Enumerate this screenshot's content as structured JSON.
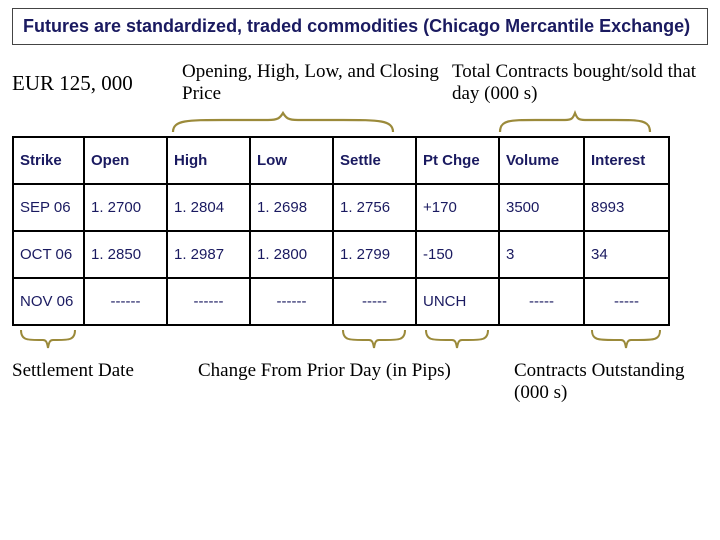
{
  "title": "Futures are standardized, traded commodities (Chicago Mercantile Exchange)",
  "annotations": {
    "contract_size": "EUR 125, 000",
    "ohlc": "Opening, High, Low, and Closing Price",
    "vol_oi": "Total Contracts bought/sold that day (000 s)",
    "settlement_date": "Settlement Date",
    "change_from_prior": "Change From Prior Day (in Pips)",
    "contracts_outstanding": "Contracts Outstanding (000 s)"
  },
  "table": {
    "columns": [
      "Strike",
      "Open",
      "High",
      "Low",
      "Settle",
      "Pt Chge",
      "Volume",
      "Interest"
    ],
    "rows": [
      [
        "SEP 06",
        "1. 2700",
        "1. 2804",
        "1. 2698",
        "1. 2756",
        "+170",
        "3500",
        "8993"
      ],
      [
        "OCT 06",
        "1. 2850",
        "1. 2987",
        "1. 2800",
        "1. 2799",
        "-150",
        "3",
        "34"
      ],
      [
        "NOV 06",
        "------",
        "------",
        "------",
        "-----",
        "UNCH",
        "-----",
        "-----"
      ]
    ],
    "border_color": "#000000",
    "header_color": "#1a1a60",
    "cell_color": "#1a1a60",
    "font_family": "Arial",
    "header_fontsize_pt": 15,
    "cell_fontsize_pt": 15
  },
  "brace_color": "#9b8a3a",
  "title_style": {
    "font_family": "Arial",
    "font_weight": "bold",
    "fontsize_pt": 18,
    "color": "#1a1a60",
    "border_color": "#444444"
  },
  "annotation_style": {
    "font_family": "Times New Roman",
    "fontsize_pt": 19,
    "color": "#000000"
  }
}
